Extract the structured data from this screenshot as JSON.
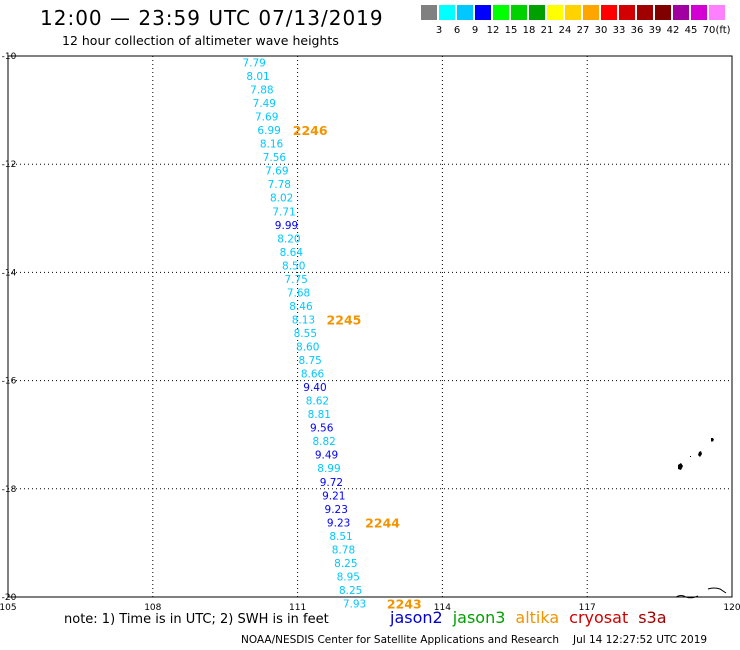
{
  "header": {
    "title": "12:00 — 23:59 UTC 07/13/2019",
    "subtitle": "12 hour collection of altimeter wave heights"
  },
  "colorbar": {
    "unit": "(ft)",
    "colors": [
      "#808080",
      "#00ffff",
      "#00c8ff",
      "#0000ff",
      "#00ff00",
      "#00d200",
      "#00a000",
      "#ffff00",
      "#ffd200",
      "#ffa500",
      "#ff0000",
      "#d20000",
      "#a00000",
      "#800000",
      "#a000a0",
      "#d200d2",
      "#ff80ff"
    ],
    "labels": [
      "3",
      "6",
      "9",
      "12",
      "15",
      "18",
      "21",
      "24",
      "27",
      "30",
      "33",
      "36",
      "39",
      "42",
      "45",
      "70"
    ]
  },
  "map": {
    "lon_range": [
      105,
      120
    ],
    "lat_range": [
      -20,
      -10
    ],
    "lon_ticks": [
      "105",
      "108",
      "111",
      "114",
      "117",
      "120"
    ],
    "lat_ticks": [
      "-10",
      "-12",
      "-14",
      "-16",
      "-18",
      "-20"
    ],
    "track_points": [
      {
        "lon": 110.1,
        "lat": -10.12,
        "swh": "7.79"
      },
      {
        "lon": 110.18,
        "lat": -10.37,
        "swh": "8.01"
      },
      {
        "lon": 110.26,
        "lat": -10.62,
        "swh": "7.88"
      },
      {
        "lon": 110.31,
        "lat": -10.87,
        "swh": "7.49"
      },
      {
        "lon": 110.36,
        "lat": -11.12,
        "swh": "7.69"
      },
      {
        "lon": 110.41,
        "lat": -11.37,
        "swh": "6.99"
      },
      {
        "lon": 110.46,
        "lat": -11.62,
        "swh": "8.16"
      },
      {
        "lon": 110.52,
        "lat": -11.87,
        "swh": "7.56"
      },
      {
        "lon": 110.57,
        "lat": -12.12,
        "swh": "7.69"
      },
      {
        "lon": 110.62,
        "lat": -12.37,
        "swh": "7.78"
      },
      {
        "lon": 110.67,
        "lat": -12.62,
        "swh": "8.02"
      },
      {
        "lon": 110.72,
        "lat": -12.87,
        "swh": "7.71"
      },
      {
        "lon": 110.77,
        "lat": -13.12,
        "swh": "9.99"
      },
      {
        "lon": 110.82,
        "lat": -13.37,
        "swh": "8.20"
      },
      {
        "lon": 110.87,
        "lat": -13.62,
        "swh": "8.64"
      },
      {
        "lon": 110.92,
        "lat": -13.87,
        "swh": "8.50"
      },
      {
        "lon": 110.97,
        "lat": -14.12,
        "swh": "7.75"
      },
      {
        "lon": 111.02,
        "lat": -14.37,
        "swh": "7.68"
      },
      {
        "lon": 111.07,
        "lat": -14.62,
        "swh": "8.46"
      },
      {
        "lon": 111.12,
        "lat": -14.87,
        "swh": "8.13"
      },
      {
        "lon": 111.16,
        "lat": -15.12,
        "swh": "8.55"
      },
      {
        "lon": 111.21,
        "lat": -15.37,
        "swh": "8.60"
      },
      {
        "lon": 111.26,
        "lat": -15.62,
        "swh": "8.75"
      },
      {
        "lon": 111.31,
        "lat": -15.87,
        "swh": "8.66"
      },
      {
        "lon": 111.36,
        "lat": -16.12,
        "swh": "9.40"
      },
      {
        "lon": 111.41,
        "lat": -16.37,
        "swh": "8.62"
      },
      {
        "lon": 111.45,
        "lat": -16.62,
        "swh": "8.81"
      },
      {
        "lon": 111.5,
        "lat": -16.87,
        "swh": "9.56"
      },
      {
        "lon": 111.55,
        "lat": -17.12,
        "swh": "8.82"
      },
      {
        "lon": 111.6,
        "lat": -17.37,
        "swh": "9.49"
      },
      {
        "lon": 111.65,
        "lat": -17.62,
        "swh": "8.99"
      },
      {
        "lon": 111.7,
        "lat": -17.87,
        "swh": "9.72"
      },
      {
        "lon": 111.75,
        "lat": -18.12,
        "swh": "9.21"
      },
      {
        "lon": 111.8,
        "lat": -18.37,
        "swh": "9.23"
      },
      {
        "lon": 111.85,
        "lat": -18.62,
        "swh": "9.23"
      },
      {
        "lon": 111.9,
        "lat": -18.87,
        "swh": "8.51"
      },
      {
        "lon": 111.95,
        "lat": -19.12,
        "swh": "8.78"
      },
      {
        "lon": 112.0,
        "lat": -19.37,
        "swh": "8.25"
      },
      {
        "lon": 112.05,
        "lat": -19.62,
        "swh": "8.95"
      },
      {
        "lon": 112.1,
        "lat": -19.87,
        "swh": "8.25"
      },
      {
        "lon": 112.18,
        "lat": -20.12,
        "swh": "7.93"
      }
    ],
    "pass_labels": [
      {
        "text": "2246",
        "lon": 110.9,
        "lat": -11.37
      },
      {
        "text": "2245",
        "lon": 111.6,
        "lat": -14.87
      },
      {
        "text": "2244",
        "lon": 112.4,
        "lat": -18.62
      },
      {
        "text": "2243",
        "lon": 112.85,
        "lat": -20.12
      }
    ],
    "land_color": "#000000"
  },
  "footer": {
    "note": "note: 1) Time is in UTC; 2) SWH is in feet",
    "satellites": [
      {
        "name": "jason2",
        "color": "#0000d0"
      },
      {
        "name": "jason3",
        "color": "#00a000"
      },
      {
        "name": "altika",
        "color": "#f29400"
      },
      {
        "name": "cryosat",
        "color": "#d00000"
      },
      {
        "name": "s3a",
        "color": "#a00000"
      }
    ],
    "credit": "NOAA/NESDIS Center for Satellite Applications and Research",
    "timestamp": "Jul 14 12:27:52 UTC 2019"
  }
}
